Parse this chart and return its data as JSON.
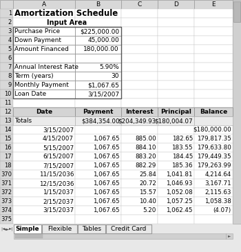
{
  "title": "Amortization Schedule",
  "input_label": "Input Area",
  "input_rows": [
    [
      "Purchase Price",
      "$225,000.00"
    ],
    [
      "Down Payment",
      "45,000.00"
    ],
    [
      "Amount Financed",
      "180,000.00"
    ],
    [
      "",
      ""
    ],
    [
      "Annual Interest Rate",
      "5.90%"
    ],
    [
      "Term (years)",
      "30"
    ],
    [
      "Monthly Payment",
      "$1,067.65"
    ],
    [
      "Loan Date",
      "3/15/2007"
    ]
  ],
  "header_row": [
    "Date",
    "Payment",
    "Interest",
    "Principal",
    "Balance"
  ],
  "totals_row": [
    "Totals",
    "$384,354.00",
    "$204,349.93",
    "$180,004.07",
    ""
  ],
  "data_rows": [
    [
      14,
      "3/15/2007",
      "",
      "",
      "",
      "$180,000.00"
    ],
    [
      15,
      "4/15/2007",
      "1,067.65",
      "885.00",
      "182.65",
      "179,817.35"
    ],
    [
      16,
      "5/15/2007",
      "1,067.65",
      "884.10",
      "183.55",
      "179,633.80"
    ],
    [
      17,
      "6/15/2007",
      "1,067.65",
      "883.20",
      "184.45",
      "179,449.35"
    ],
    [
      18,
      "7/15/2007",
      "1,067.65",
      "882.29",
      "185.36",
      "179,263.99"
    ],
    [
      370,
      "11/15/2036",
      "1,067.65",
      "25.84",
      "1,041.81",
      "4,214.64"
    ],
    [
      371,
      "12/15/2036",
      "1,067.65",
      "20.72",
      "1,046.93",
      "3,167.71"
    ],
    [
      372,
      "1/15/2037",
      "1,067.65",
      "15.57",
      "1,052.08",
      "2,115.63"
    ],
    [
      373,
      "2/15/2037",
      "1,067.65",
      "10.40",
      "1,057.25",
      "1,058.38"
    ],
    [
      374,
      "3/15/2037",
      "1,067.65",
      "5.20",
      "1,062.45",
      "(4.07)"
    ]
  ],
  "sheet_tabs": [
    "Simple",
    "Flexible",
    "Tables",
    "Credit Card"
  ],
  "active_tab": "Simple",
  "col_letters": [
    "A",
    "B",
    "C",
    "D",
    "E"
  ],
  "bg_color": "#e8e8e8",
  "cell_bg": "#ffffff",
  "header_cell_bg": "#d4d4d4",
  "input_border": "#888888",
  "grid_color": "#c8c8c8"
}
